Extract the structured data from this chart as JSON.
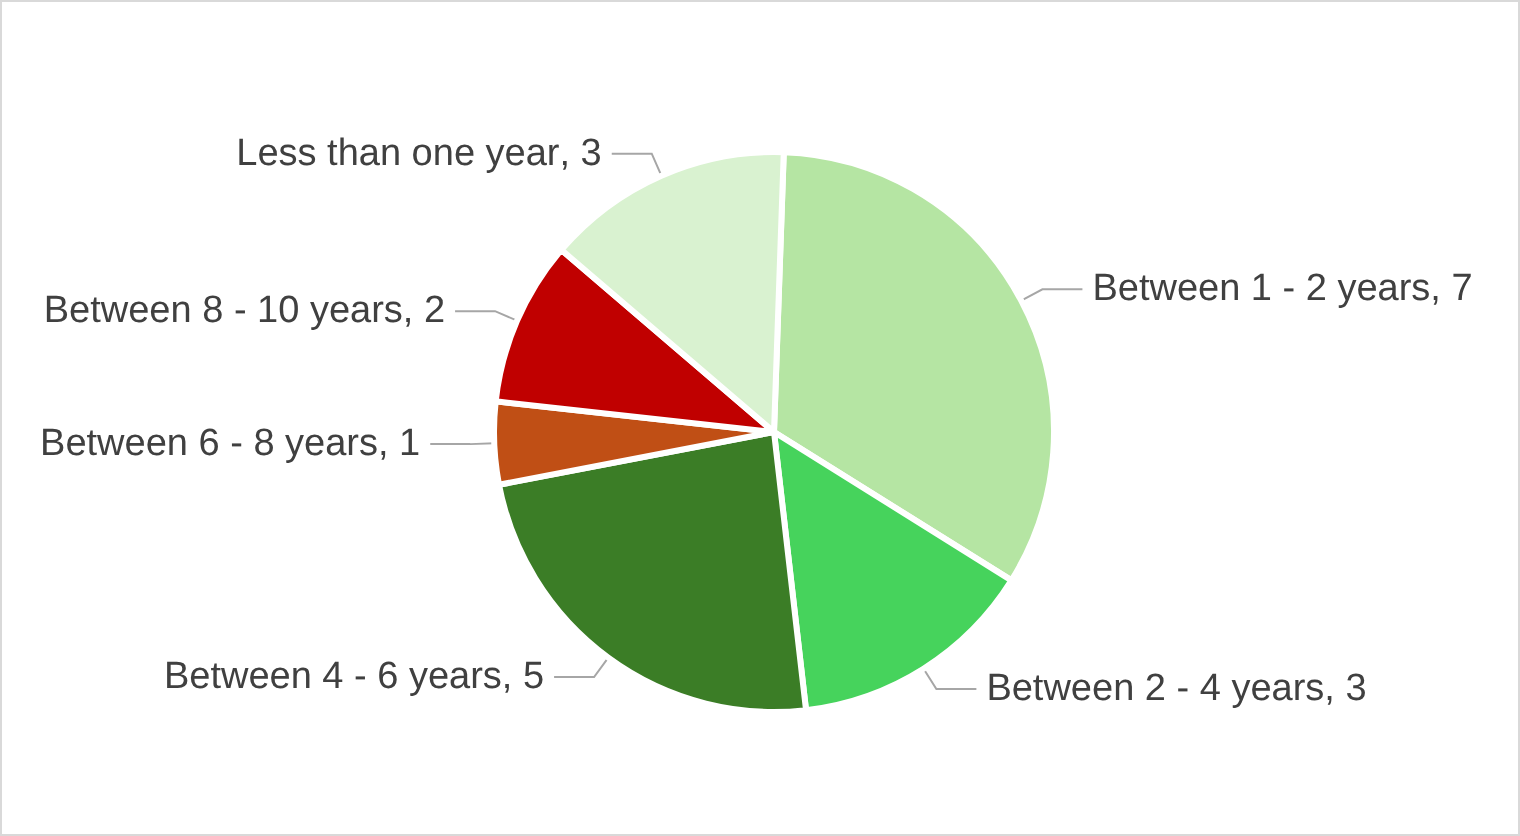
{
  "chart_data": {
    "type": "pie",
    "categories": [
      "Between 1 - 2 years",
      "Between 2 - 4 years",
      "Between 4 - 6 years",
      "Between 6 - 8 years",
      "Between 8 - 10 years",
      "Less than one year"
    ],
    "values": [
      7,
      3,
      5,
      1,
      2,
      3
    ],
    "colors": [
      "#b5e5a3",
      "#46d35c",
      "#3b7d26",
      "#c04f15",
      "#c00000",
      "#d9f2d0"
    ],
    "value_labels": [
      ", 7",
      ", 3",
      ", 5",
      ", 1",
      ", 2",
      ", 3"
    ],
    "legend": false
  }
}
